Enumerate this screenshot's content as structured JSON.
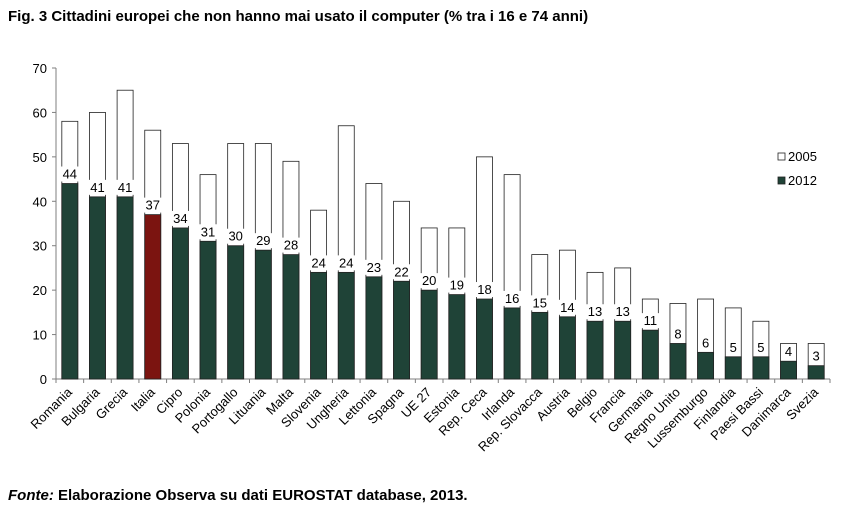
{
  "title": "Fig. 3 Cittadini europei che non hanno mai usato il computer (% tra i 16 e 74 anni)",
  "footer": {
    "source_label": "Fonte:",
    "source_text": "Elaborazione Observa su dati EUROSTAT database, 2013."
  },
  "colors": {
    "bar_2012": "#1f4337",
    "bar_italia": "#7b1410",
    "bar_2005_fill": "#ffffff",
    "bar_2005_stroke": "#222222"
  },
  "chart_data": {
    "type": "bar",
    "ylim": [
      0,
      70
    ],
    "yticks": [
      "0",
      "10",
      "20",
      "30",
      "40",
      "50",
      "60",
      "70"
    ],
    "grid": false,
    "legend_placement": "right",
    "highlight_category": "Italia",
    "categories": [
      "Romania",
      "Bulgaria",
      "Grecia",
      "Italia",
      "Cipro",
      "Polonia",
      "Portogallo",
      "Lituania",
      "Malta",
      "Slovenia",
      "Ungheria",
      "Lettonia",
      "Spagna",
      "UE 27",
      "Estonia",
      "Rep. Ceca",
      "Irlanda",
      "Rep. Slovacca",
      "Austria",
      "Belgio",
      "Francia",
      "Germania",
      "Regno Unito",
      "Lussemburgo",
      "Finlandia",
      "Paesi Bassi",
      "Danimarca",
      "Svezia"
    ],
    "series": [
      {
        "name": "2005",
        "values": [
          58,
          60,
          65,
          56,
          53,
          46,
          53,
          53,
          49,
          38,
          57,
          44,
          40,
          34,
          34,
          50,
          46,
          28,
          29,
          24,
          25,
          18,
          17,
          18,
          16,
          13,
          8,
          8
        ]
      },
      {
        "name": "2012",
        "values": [
          44,
          41,
          41,
          37,
          34,
          31,
          30,
          29,
          28,
          24,
          24,
          23,
          22,
          20,
          19,
          18,
          16,
          15,
          14,
          13,
          13,
          11,
          8,
          6,
          5,
          5,
          4,
          3
        ]
      }
    ]
  }
}
